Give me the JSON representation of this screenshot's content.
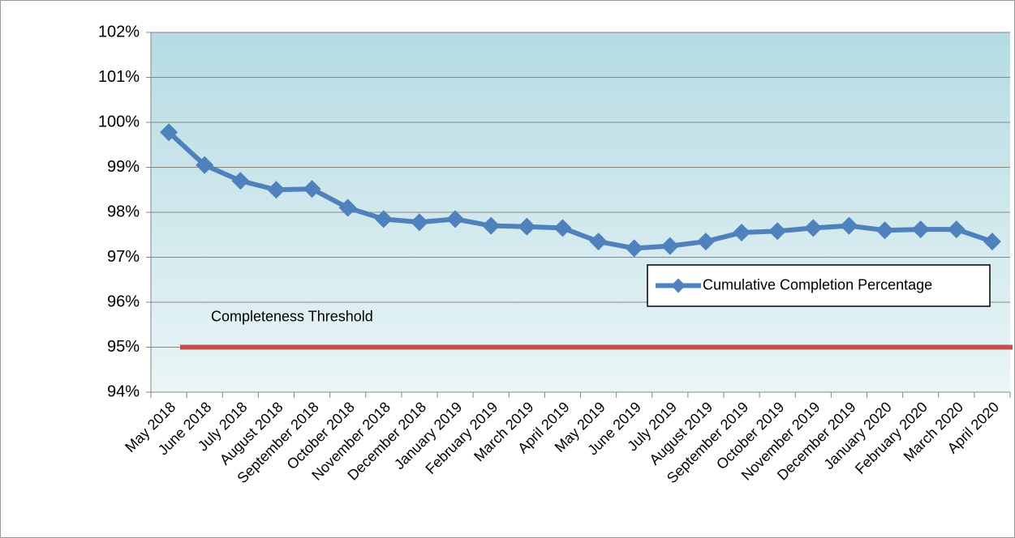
{
  "chart_data": {
    "type": "line",
    "categories": [
      "May 2018",
      "June 2018",
      "July 2018",
      "August 2018",
      "September 2018",
      "October 2018",
      "November 2018",
      "December 2018",
      "January 2019",
      "February 2019",
      "March 2019",
      "April 2019",
      "May 2019",
      "June 2019",
      "July 2019",
      "August 2019",
      "September 2019",
      "October 2019",
      "November 2019",
      "December 2019",
      "January 2020",
      "February 2020",
      "March 2020",
      "April 2020"
    ],
    "series": [
      {
        "name": "Cumulative Completion Percentage",
        "color": "#4f81bd",
        "values": [
          99.78,
          99.05,
          98.7,
          98.5,
          98.52,
          98.1,
          97.85,
          97.78,
          97.85,
          97.7,
          97.68,
          97.65,
          97.35,
          97.2,
          97.25,
          97.35,
          97.55,
          97.58,
          97.65,
          97.7,
          97.6,
          97.62,
          97.62,
          97.35
        ]
      }
    ],
    "threshold": {
      "label": "Completeness Threshold",
      "value": 95,
      "color": "#c0504d"
    },
    "ylim": [
      94,
      102
    ],
    "yticks": [
      {
        "value": 94,
        "label": "94%"
      },
      {
        "value": 95,
        "label": "95%"
      },
      {
        "value": 96,
        "label": "96%"
      },
      {
        "value": 97,
        "label": "97%"
      },
      {
        "value": 98,
        "label": "98%"
      },
      {
        "value": 99,
        "label": "99%"
      },
      {
        "value": 100,
        "label": "100%"
      },
      {
        "value": 101,
        "label": "101%"
      },
      {
        "value": 102,
        "label": "102%"
      }
    ],
    "grid": true,
    "legend": "right"
  }
}
